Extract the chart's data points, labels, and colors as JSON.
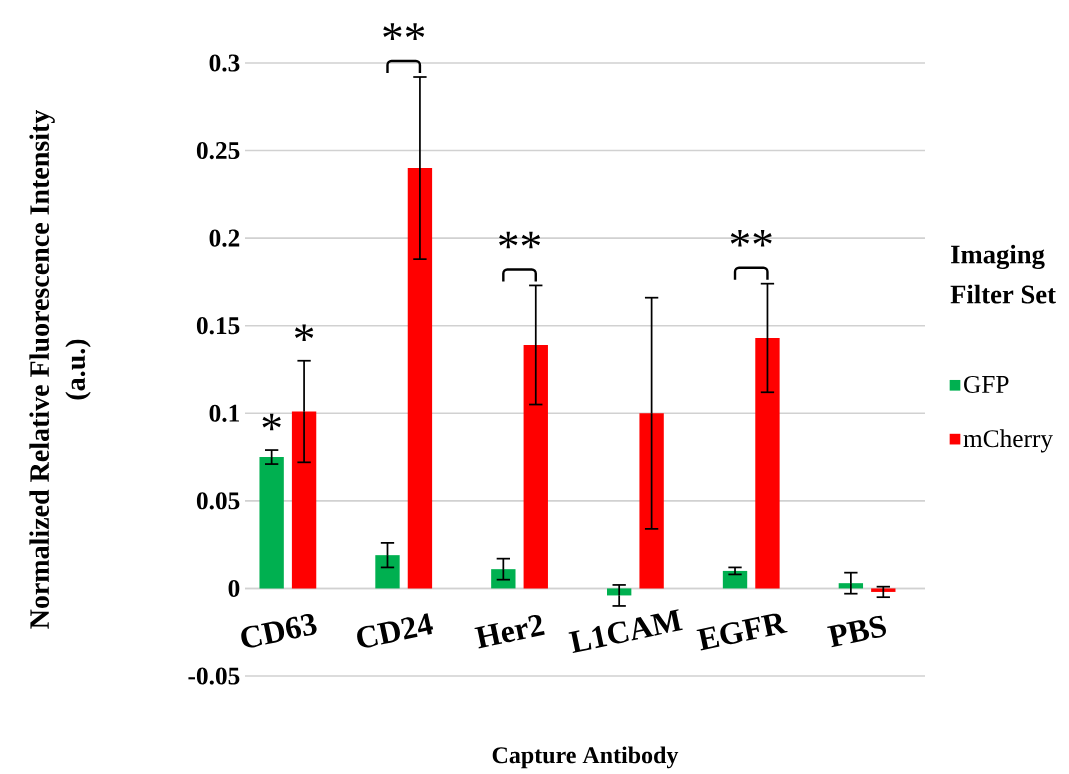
{
  "chart_data": {
    "type": "bar",
    "xlabel": "Capture Antibody",
    "ylabel": "Normalized Relative Fluorescence Intensity (a.u.)",
    "legend_title": "Imaging Filter Set",
    "categories": [
      "CD63",
      "CD24",
      "Her2",
      "L1CAM",
      "EGFR",
      "PBS"
    ],
    "series": [
      {
        "name": "GFP",
        "color": "#00b050",
        "values": [
          0.075,
          0.019,
          0.011,
          -0.004,
          0.01,
          0.003
        ],
        "errors": [
          0.004,
          0.007,
          0.006,
          0.006,
          0.002,
          0.006
        ]
      },
      {
        "name": "mCherry",
        "color": "#ff0000",
        "values": [
          0.101,
          0.24,
          0.139,
          0.1,
          0.143,
          -0.002
        ],
        "errors": [
          0.029,
          0.052,
          0.034,
          0.066,
          0.031,
          0.003
        ]
      }
    ],
    "ylim": [
      -0.05,
      0.3
    ],
    "yticks": [
      -0.05,
      0,
      0.05,
      0.1,
      0.15,
      0.2,
      0.25,
      0.3
    ],
    "grid": "y",
    "legend": "right",
    "annotations": [
      "*",
      "*",
      "**",
      "**",
      "**"
    ]
  }
}
